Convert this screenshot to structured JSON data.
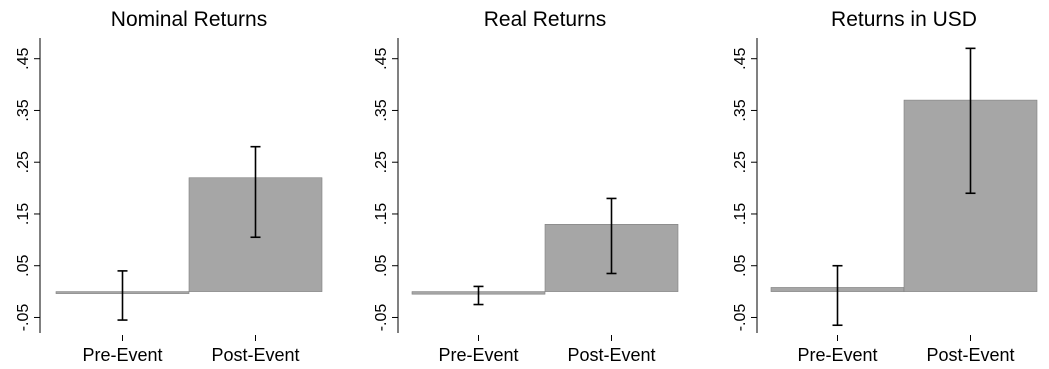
{
  "chart_data": [
    {
      "type": "bar",
      "title": "Nominal Returns",
      "categories": [
        "Pre-Event",
        "Post-Event"
      ],
      "values": [
        0.0,
        0.22
      ],
      "error_bars": [
        {
          "low": -0.055,
          "high": 0.04
        },
        {
          "low": 0.105,
          "high": 0.28
        }
      ],
      "yticks": [
        -0.05,
        0.05,
        0.15,
        0.25,
        0.35,
        0.45
      ],
      "ytick_labels": [
        "-.05",
        ".05",
        ".15",
        ".25",
        ".35",
        ".45"
      ],
      "ylim": [
        -0.08,
        0.49
      ],
      "bar_color": "#a6a6a6",
      "grid": false
    },
    {
      "type": "bar",
      "title": "Real Returns",
      "categories": [
        "Pre-Event",
        "Post-Event"
      ],
      "values": [
        -0.005,
        0.13
      ],
      "error_bars": [
        {
          "low": -0.025,
          "high": 0.01
        },
        {
          "low": 0.035,
          "high": 0.18
        }
      ],
      "yticks": [
        -0.05,
        0.05,
        0.15,
        0.25,
        0.35,
        0.45
      ],
      "ytick_labels": [
        "-.05",
        ".05",
        ".15",
        ".25",
        ".35",
        ".45"
      ],
      "ylim": [
        -0.08,
        0.49
      ],
      "bar_color": "#a6a6a6",
      "grid": false
    },
    {
      "type": "bar",
      "title": "Returns in USD",
      "categories": [
        "Pre-Event",
        "Post-Event"
      ],
      "values": [
        0.008,
        0.37
      ],
      "error_bars": [
        {
          "low": -0.065,
          "high": 0.05
        },
        {
          "low": 0.19,
          "high": 0.47
        }
      ],
      "yticks": [
        -0.05,
        0.05,
        0.15,
        0.25,
        0.35,
        0.45
      ],
      "ytick_labels": [
        "-.05",
        ".05",
        ".15",
        ".25",
        ".35",
        ".45"
      ],
      "ylim": [
        -0.08,
        0.49
      ],
      "bar_color": "#a6a6a6",
      "grid": false
    }
  ]
}
